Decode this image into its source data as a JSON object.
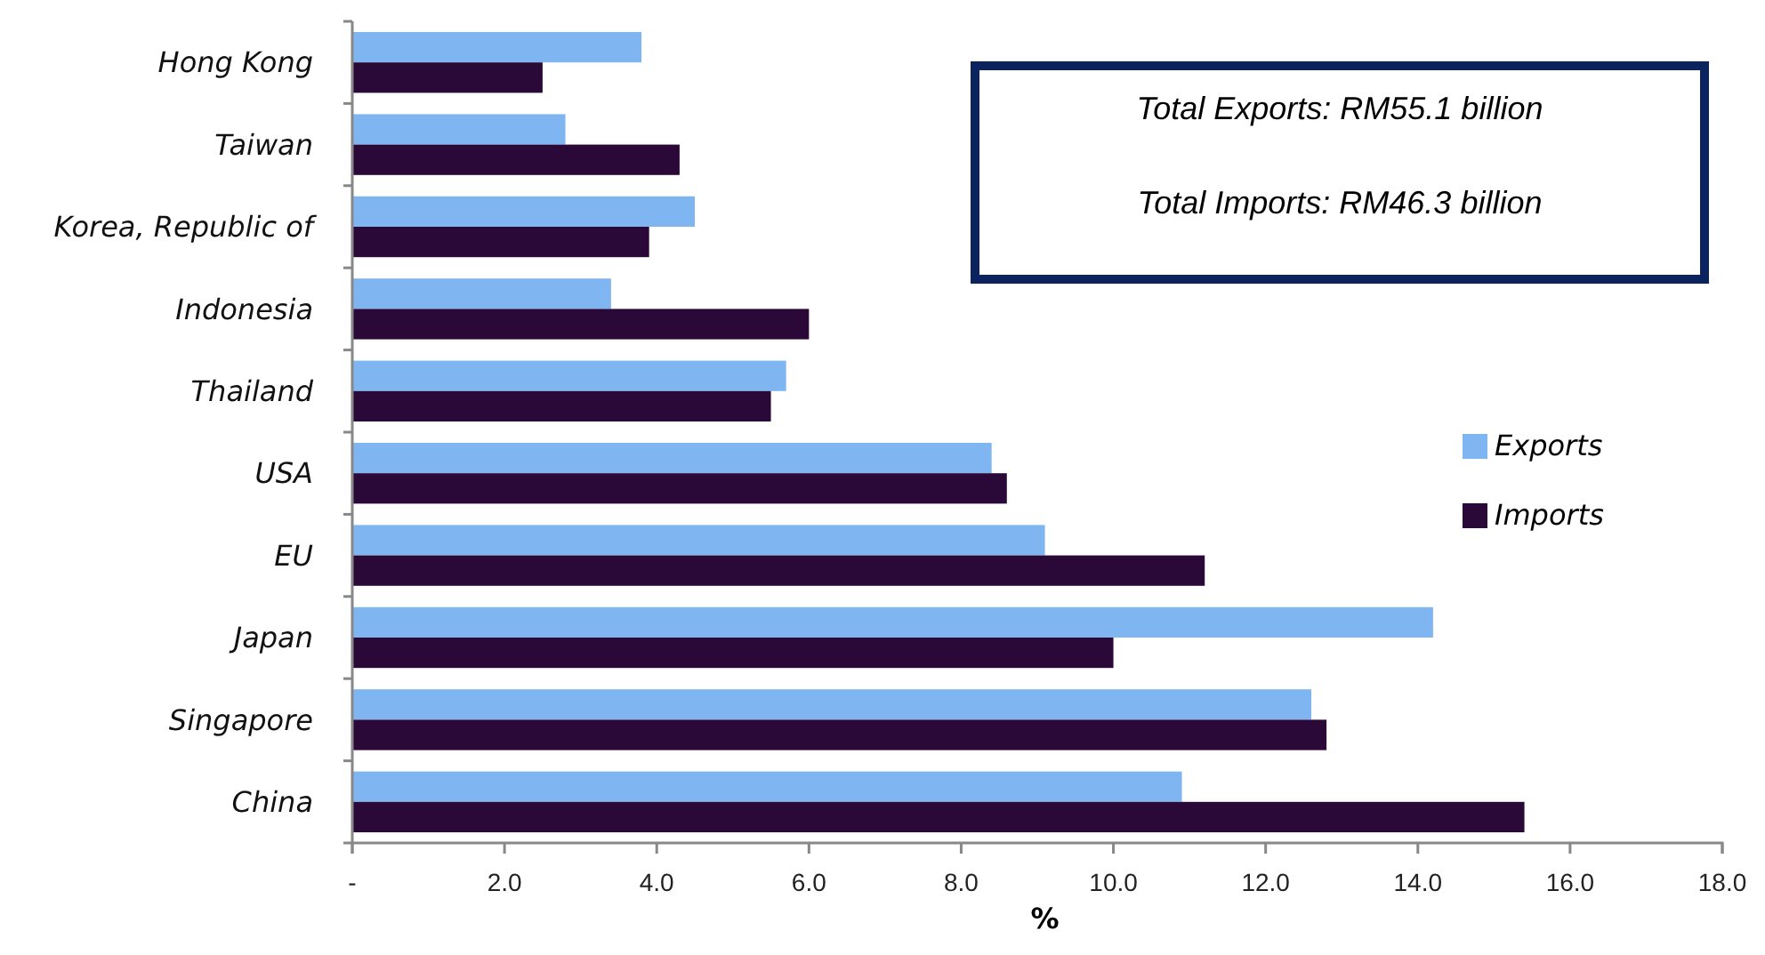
{
  "chart_data": {
    "type": "bar",
    "orientation": "horizontal",
    "xlabel": "%",
    "categories": [
      "Hong Kong",
      "Taiwan",
      "Korea, Republic of",
      "Indonesia",
      "Thailand",
      "USA",
      "EU",
      "Japan",
      "Singapore",
      "China"
    ],
    "series": [
      {
        "name": "Exports",
        "color": "#7fb6f2",
        "values": [
          3.8,
          2.8,
          4.5,
          3.4,
          5.7,
          8.4,
          9.1,
          14.2,
          12.6,
          10.9
        ]
      },
      {
        "name": "Imports",
        "color": "#2a0838",
        "values": [
          2.5,
          4.3,
          3.9,
          6.0,
          5.5,
          8.6,
          11.2,
          10.0,
          12.8,
          15.4
        ]
      }
    ],
    "xlim": [
      0,
      18
    ],
    "xticks": [
      {
        "value": 0,
        "label": "-"
      },
      {
        "value": 2,
        "label": "2.0"
      },
      {
        "value": 4,
        "label": "4.0"
      },
      {
        "value": 6,
        "label": "6.0"
      },
      {
        "value": 8,
        "label": "8.0"
      },
      {
        "value": 10,
        "label": "10.0"
      },
      {
        "value": 12,
        "label": "12.0"
      },
      {
        "value": 14,
        "label": "14.0"
      },
      {
        "value": 16,
        "label": "16.0"
      },
      {
        "value": 18,
        "label": "18.0"
      }
    ],
    "annotations": [
      "Total Exports: RM55.1 billion",
      "Total Imports: RM46.3 billion"
    ],
    "legend": "right",
    "grid": false
  }
}
